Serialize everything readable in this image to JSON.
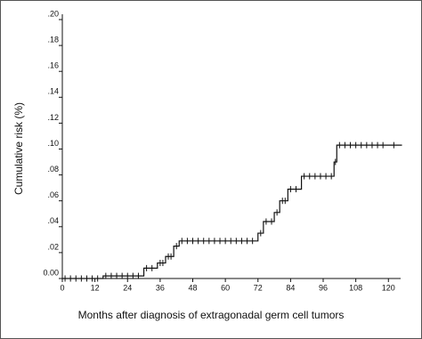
{
  "chart_data": {
    "type": "step",
    "x_label": "Months after diagnosis of extragonadal germ cell tumors",
    "y_label": "Cumulative risk (%)",
    "xlim": [
      0,
      124.5
    ],
    "ylim": [
      0,
      0.2
    ],
    "xticks": [
      0,
      12,
      24,
      36,
      48,
      60,
      72,
      84,
      96,
      108,
      120
    ],
    "yticks": [
      {
        "value": 0,
        "label": "0.00"
      },
      {
        "value": 0.02,
        "label": ".02"
      },
      {
        "value": 0.04,
        "label": ".04"
      },
      {
        "value": 0.06,
        "label": ".06"
      },
      {
        "value": 0.08,
        "label": ".08"
      },
      {
        "value": 0.1,
        "label": ".10"
      },
      {
        "value": 0.12,
        "label": ".12"
      },
      {
        "value": 0.14,
        "label": ".14"
      },
      {
        "value": 0.16,
        "label": ".16"
      },
      {
        "value": 0.18,
        "label": ".18"
      },
      {
        "value": 0.2,
        "label": ".20"
      }
    ],
    "color": "#111111",
    "steps": {
      "x": [
        0,
        15,
        30,
        35,
        38,
        41,
        43,
        72,
        74,
        78,
        80,
        83,
        88,
        100,
        101,
        125
      ],
      "y": [
        0,
        0.002,
        0.008,
        0.012,
        0.017,
        0.025,
        0.029,
        0.035,
        0.044,
        0.051,
        0.06,
        0.069,
        0.079,
        0.09,
        0.103,
        0.103
      ]
    },
    "censored": {
      "x": [
        1,
        3,
        5,
        7,
        9,
        11,
        13,
        16,
        18,
        20,
        22,
        24,
        26,
        28,
        31,
        33,
        36,
        37,
        39,
        40,
        42,
        44,
        46,
        48,
        50,
        52,
        54,
        56,
        58,
        60,
        62,
        64,
        66,
        68,
        70,
        73,
        75,
        77,
        79,
        81,
        82,
        84,
        86,
        89,
        91,
        93,
        95,
        97,
        99,
        100.5,
        102,
        104,
        106,
        108,
        110,
        112,
        114,
        116,
        118,
        122
      ],
      "y": [
        0,
        0,
        0,
        0,
        0,
        0,
        0,
        0.002,
        0.002,
        0.002,
        0.002,
        0.002,
        0.002,
        0.002,
        0.008,
        0.008,
        0.012,
        0.012,
        0.017,
        0.017,
        0.025,
        0.029,
        0.029,
        0.029,
        0.029,
        0.029,
        0.029,
        0.029,
        0.029,
        0.029,
        0.029,
        0.029,
        0.029,
        0.029,
        0.029,
        0.035,
        0.044,
        0.044,
        0.051,
        0.06,
        0.06,
        0.069,
        0.069,
        0.079,
        0.079,
        0.079,
        0.079,
        0.079,
        0.079,
        0.09,
        0.103,
        0.103,
        0.103,
        0.103,
        0.103,
        0.103,
        0.103,
        0.103,
        0.103,
        0.103
      ]
    }
  }
}
